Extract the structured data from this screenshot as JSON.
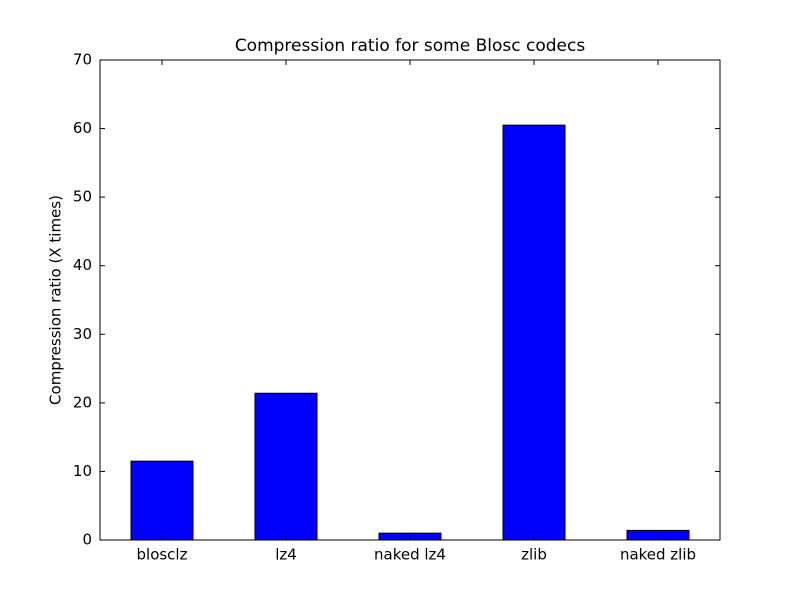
{
  "chart_data": {
    "type": "bar",
    "title": "Compression ratio for some Blosc codecs",
    "y_label": "Compression ratio (X times)",
    "categories": [
      "blosclz",
      "lz4",
      "naked lz4",
      "zlib",
      "naked zlib"
    ],
    "values": [
      11.5,
      21.4,
      1.0,
      60.5,
      1.4
    ],
    "color": "#0000ff",
    "ylim": [
      0,
      70
    ],
    "yticks": [
      0,
      10,
      20,
      30,
      40,
      50,
      60,
      70
    ],
    "grid": false
  }
}
